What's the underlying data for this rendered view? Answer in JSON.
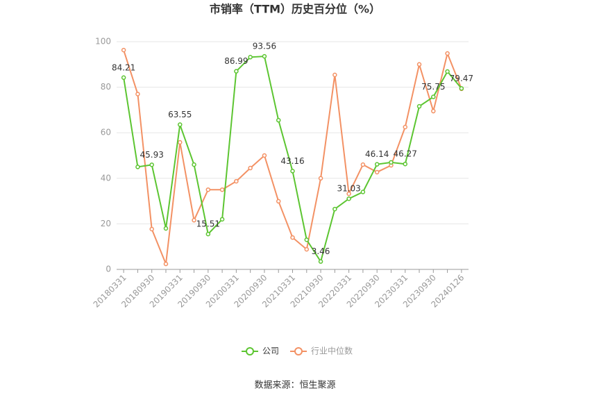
{
  "chart_data": {
    "type": "line",
    "title": "市销率（TTM）历史百分位（%）",
    "categories": [
      "20180331",
      null,
      "20180930",
      null,
      "20190331",
      null,
      "20190930",
      null,
      "20200331",
      null,
      "20200930",
      null,
      "20210331",
      null,
      "20210930",
      null,
      "20220331",
      null,
      "20220930",
      null,
      "20230331",
      null,
      "20230930",
      null,
      "20240126"
    ],
    "series": [
      {
        "name": "公司",
        "color": "#5cc531",
        "values": [
          84.21,
          45,
          45.93,
          18,
          63.55,
          46,
          15.51,
          22,
          86.99,
          93.2,
          93.56,
          65.5,
          43.16,
          13,
          3.46,
          26.5,
          31.03,
          34,
          46.14,
          47,
          46.27,
          71.6,
          75.75,
          86.9,
          79.47
        ],
        "value_labels": [
          "84.21",
          null,
          "45.93",
          null,
          "63.55",
          null,
          "15.51",
          null,
          "86.99",
          null,
          "93.56",
          null,
          "43.16",
          null,
          "3.46",
          null,
          "31.03",
          null,
          "46.14",
          null,
          "46.27",
          null,
          "75.75",
          null,
          "79.47"
        ]
      },
      {
        "name": "行业中位数",
        "color": "#f39164",
        "values": [
          96.3,
          77,
          17.7,
          2.4,
          55.8,
          21.6,
          35,
          35,
          38.7,
          44.5,
          50,
          29.9,
          14,
          8.8,
          40,
          85.4,
          33.2,
          46,
          42.7,
          45.7,
          62.5,
          90,
          69.5,
          94.8,
          79.3
        ]
      }
    ],
    "ylim": [
      0,
      100
    ],
    "yticks": [
      0,
      20,
      40,
      60,
      80,
      100
    ],
    "grid": true,
    "source": "数据来源：恒生聚源"
  }
}
